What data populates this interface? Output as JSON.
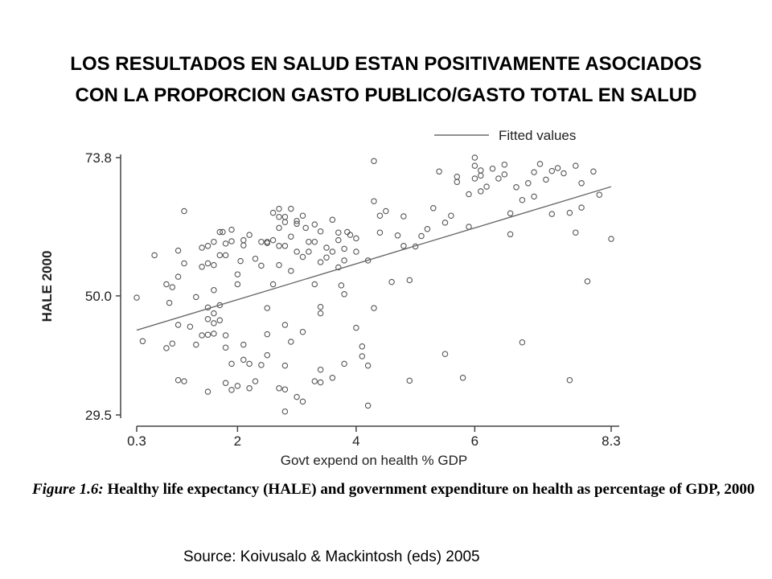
{
  "slide": {
    "title_line1": "LOS RESULTADOS EN SALUD ESTAN POSITIVAMENTE ASOCIADOS",
    "title_line2": "CON LA PROPORCION GASTO PUBLICO/GASTO TOTAL EN SALUD"
  },
  "figure": {
    "label": "Figure 1.6:",
    "caption": "Healthy life expectancy (HALE) and government expenditure on health as percentage of GDP, 2000"
  },
  "source": "Source: Koivusalo & Mackintosh (eds) 2005",
  "chart_data": {
    "type": "scatter",
    "xlabel": "Govt expend on health % GDP",
    "ylabel": "HALE 2000",
    "x_ticks": [
      "0.3",
      "2",
      "4",
      "6",
      "8.3"
    ],
    "y_ticks": [
      "73.8",
      "50.0",
      "29.5"
    ],
    "xlim": [
      0.3,
      8.3
    ],
    "ylim": [
      29.5,
      73.8
    ],
    "grid": false,
    "legend": {
      "position": "top-right",
      "entries": [
        "Fitted values"
      ]
    },
    "colors": {
      "points": "#555555",
      "fit_line": "#6b6b6b",
      "axes": "#444444"
    },
    "fitted_line": {
      "x": [
        0.3,
        8.3
      ],
      "y": [
        44.1,
        68.8
      ]
    },
    "points": [
      [
        0.3,
        49.7
      ],
      [
        0.4,
        42.2
      ],
      [
        0.6,
        57.0
      ],
      [
        0.8,
        52.0
      ],
      [
        0.8,
        41.0
      ],
      [
        0.9,
        41.8
      ],
      [
        0.85,
        48.8
      ],
      [
        0.9,
        51.5
      ],
      [
        1.0,
        53.3
      ],
      [
        1.0,
        57.8
      ],
      [
        1.0,
        45.0
      ],
      [
        1.0,
        35.5
      ],
      [
        1.1,
        35.3
      ],
      [
        1.1,
        55.6
      ],
      [
        1.1,
        64.6
      ],
      [
        1.2,
        44.7
      ],
      [
        1.3,
        41.6
      ],
      [
        1.3,
        49.8
      ],
      [
        1.4,
        43.2
      ],
      [
        1.4,
        58.3
      ],
      [
        1.4,
        55.0
      ],
      [
        1.5,
        58.6
      ],
      [
        1.5,
        48.0
      ],
      [
        1.5,
        46.0
      ],
      [
        1.5,
        43.3
      ],
      [
        1.5,
        33.5
      ],
      [
        1.6,
        51.0
      ],
      [
        1.6,
        47.0
      ],
      [
        1.6,
        45.3
      ],
      [
        1.6,
        43.5
      ],
      [
        1.7,
        48.4
      ],
      [
        1.7,
        45.8
      ],
      [
        1.6,
        55.3
      ],
      [
        1.6,
        59.3
      ],
      [
        1.7,
        57.0
      ],
      [
        1.7,
        61.0
      ],
      [
        1.75,
        61.0
      ],
      [
        1.8,
        59.0
      ],
      [
        1.8,
        57.0
      ],
      [
        1.8,
        43.2
      ],
      [
        1.8,
        41.1
      ],
      [
        1.8,
        35.0
      ],
      [
        1.9,
        61.4
      ],
      [
        1.9,
        59.4
      ],
      [
        1.9,
        38.3
      ],
      [
        1.9,
        33.8
      ],
      [
        2.0,
        34.5
      ],
      [
        2.0,
        52.0
      ],
      [
        2.0,
        53.7
      ],
      [
        2.05,
        56.0
      ],
      [
        2.1,
        59.6
      ],
      [
        2.1,
        58.7
      ],
      [
        2.1,
        41.6
      ],
      [
        2.1,
        39.0
      ],
      [
        2.2,
        60.5
      ],
      [
        2.2,
        38.3
      ],
      [
        2.2,
        34.1
      ],
      [
        2.3,
        35.3
      ],
      [
        2.3,
        56.4
      ],
      [
        2.4,
        59.3
      ],
      [
        2.4,
        55.2
      ],
      [
        2.4,
        38.1
      ],
      [
        2.5,
        59.1
      ],
      [
        2.5,
        59.3
      ],
      [
        2.5,
        47.9
      ],
      [
        2.5,
        43.4
      ],
      [
        2.5,
        39.8
      ],
      [
        2.6,
        64.3
      ],
      [
        2.6,
        59.6
      ],
      [
        2.7,
        34.1
      ],
      [
        2.7,
        61.7
      ],
      [
        2.7,
        65.0
      ],
      [
        2.7,
        63.6
      ],
      [
        2.7,
        55.3
      ],
      [
        2.7,
        58.6
      ],
      [
        2.8,
        38.0
      ],
      [
        2.8,
        62.7
      ],
      [
        2.8,
        63.6
      ],
      [
        2.8,
        58.6
      ],
      [
        2.8,
        45.0
      ],
      [
        2.8,
        33.9
      ],
      [
        2.8,
        30.1
      ],
      [
        2.9,
        65.0
      ],
      [
        2.9,
        60.2
      ],
      [
        2.9,
        42.1
      ],
      [
        2.9,
        54.3
      ],
      [
        3.0,
        62.9
      ],
      [
        3.0,
        57.6
      ],
      [
        3.0,
        62.4
      ],
      [
        3.0,
        32.6
      ],
      [
        3.1,
        63.8
      ],
      [
        3.1,
        56.7
      ],
      [
        3.1,
        43.8
      ],
      [
        3.1,
        31.8
      ],
      [
        3.15,
        61.7
      ],
      [
        3.2,
        59.3
      ],
      [
        3.2,
        57.6
      ],
      [
        3.3,
        52.0
      ],
      [
        3.3,
        62.3
      ],
      [
        3.3,
        59.3
      ],
      [
        3.3,
        35.3
      ],
      [
        3.4,
        35.1
      ],
      [
        3.4,
        55.8
      ],
      [
        3.4,
        37.3
      ],
      [
        3.4,
        48.1
      ],
      [
        3.4,
        61.1
      ],
      [
        3.5,
        58.3
      ],
      [
        3.5,
        56.6
      ],
      [
        3.6,
        57.6
      ],
      [
        3.6,
        63.1
      ],
      [
        3.6,
        35.9
      ],
      [
        3.7,
        60.9
      ],
      [
        3.7,
        59.6
      ],
      [
        3.7,
        54.9
      ],
      [
        3.75,
        51.8
      ],
      [
        3.8,
        38.3
      ],
      [
        3.8,
        50.3
      ],
      [
        3.8,
        58.1
      ],
      [
        3.8,
        56.1
      ],
      [
        3.85,
        61.0
      ],
      [
        3.9,
        60.5
      ],
      [
        4.0,
        59.9
      ],
      [
        4.0,
        57.6
      ],
      [
        4.0,
        44.5
      ],
      [
        4.1,
        41.3
      ],
      [
        4.1,
        39.6
      ],
      [
        4.2,
        38.0
      ],
      [
        4.2,
        31.1
      ],
      [
        4.2,
        56.1
      ],
      [
        4.3,
        66.3
      ],
      [
        4.3,
        47.9
      ],
      [
        4.3,
        73.2
      ],
      [
        4.4,
        63.8
      ],
      [
        4.4,
        60.9
      ],
      [
        4.5,
        64.6
      ],
      [
        4.6,
        52.4
      ],
      [
        4.7,
        60.4
      ],
      [
        4.8,
        58.6
      ],
      [
        4.8,
        63.7
      ],
      [
        4.9,
        35.4
      ],
      [
        4.9,
        52.7
      ],
      [
        5.0,
        58.5
      ],
      [
        5.1,
        60.3
      ],
      [
        5.2,
        61.5
      ],
      [
        5.3,
        65.1
      ],
      [
        5.4,
        71.4
      ],
      [
        5.5,
        62.6
      ],
      [
        5.6,
        63.8
      ],
      [
        5.7,
        69.6
      ],
      [
        5.7,
        70.5
      ],
      [
        5.8,
        35.9
      ],
      [
        5.9,
        67.5
      ],
      [
        5.9,
        61.9
      ],
      [
        6.0,
        73.8
      ],
      [
        6.0,
        72.4
      ],
      [
        6.0,
        70.2
      ],
      [
        6.1,
        71.6
      ],
      [
        6.1,
        70.7
      ],
      [
        6.1,
        68.0
      ],
      [
        6.2,
        68.8
      ],
      [
        6.3,
        71.9
      ],
      [
        6.4,
        70.2
      ],
      [
        6.5,
        72.6
      ],
      [
        6.5,
        70.9
      ],
      [
        6.6,
        64.2
      ],
      [
        6.6,
        60.6
      ],
      [
        6.7,
        68.7
      ],
      [
        6.8,
        66.5
      ],
      [
        6.9,
        69.4
      ],
      [
        7.0,
        71.3
      ],
      [
        7.0,
        67.1
      ],
      [
        7.1,
        72.7
      ],
      [
        7.2,
        70.0
      ],
      [
        7.3,
        71.5
      ],
      [
        7.3,
        64.1
      ],
      [
        7.4,
        72.0
      ],
      [
        7.5,
        71.1
      ],
      [
        7.6,
        64.3
      ],
      [
        7.7,
        60.9
      ],
      [
        7.7,
        72.4
      ],
      [
        7.8,
        69.4
      ],
      [
        7.8,
        65.2
      ],
      [
        7.9,
        52.5
      ],
      [
        8.0,
        71.4
      ],
      [
        8.1,
        67.4
      ],
      [
        8.3,
        59.8
      ],
      [
        1.5,
        55.6
      ],
      [
        2.6,
        52.0
      ],
      [
        3.4,
        47.0
      ],
      [
        5.5,
        40.0
      ],
      [
        6.8,
        42.0
      ],
      [
        7.6,
        35.5
      ]
    ]
  }
}
